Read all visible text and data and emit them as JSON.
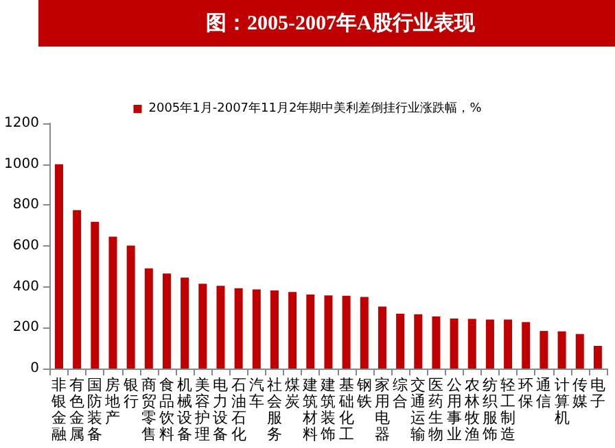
{
  "chart_data": {
    "type": "bar",
    "title": "图：2005-2007年A股行业表现",
    "categories": [
      "非银金融",
      "有色金属",
      "国防装备",
      "房地产",
      "银行",
      "商贸零售",
      "食品饮料",
      "机械设备",
      "美容护理",
      "电力设备",
      "石油石化",
      "汽车",
      "社会服务",
      "煤炭",
      "建筑材料",
      "建筑装饰",
      "基础化工",
      "钢铁",
      "家用电器",
      "综合",
      "交通运输",
      "医药生物",
      "公用事业",
      "农林牧渔",
      "纺织服饰",
      "轻工制造",
      "环保",
      "通信",
      "计算机",
      "传媒",
      "电子"
    ],
    "series": [
      {
        "name": "2005年1月-2007年11月2年期中美利差倒挂行业涨跌幅，%",
        "color": "#c00000",
        "values": [
          1000,
          775,
          718,
          645,
          602,
          490,
          465,
          445,
          415,
          405,
          393,
          387,
          382,
          375,
          362,
          358,
          356,
          350,
          303,
          268,
          266,
          255,
          245,
          243,
          240,
          240,
          227,
          184,
          182,
          169,
          111
        ]
      }
    ],
    "ylim": [
      0,
      1200
    ],
    "yticks": [
      0,
      200,
      400,
      600,
      800,
      1000,
      1200
    ],
    "grid": false,
    "legend": "top"
  }
}
